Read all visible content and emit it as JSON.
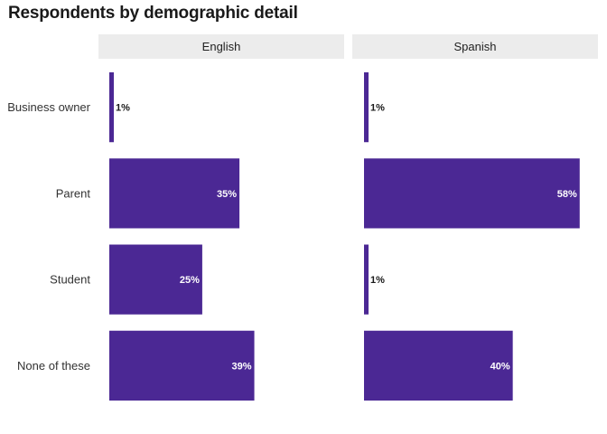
{
  "chart_data": {
    "type": "bar",
    "orientation": "horizontal",
    "title": "Respondents by demographic detail",
    "categories": [
      "Business owner",
      "Parent",
      "Student",
      "None of these"
    ],
    "facets": [
      {
        "name": "English",
        "values": [
          1,
          35,
          25,
          39
        ],
        "labels": [
          "1%",
          "35%",
          "25%",
          "39%"
        ]
      },
      {
        "name": "Spanish",
        "values": [
          1,
          58,
          1,
          40
        ],
        "labels": [
          "1%",
          "58%",
          "1%",
          "40%"
        ]
      }
    ],
    "xlim": [
      0,
      60
    ],
    "bar_color": "#4b2894",
    "strip_color": "#ececec",
    "grid": false,
    "legend": "none"
  }
}
